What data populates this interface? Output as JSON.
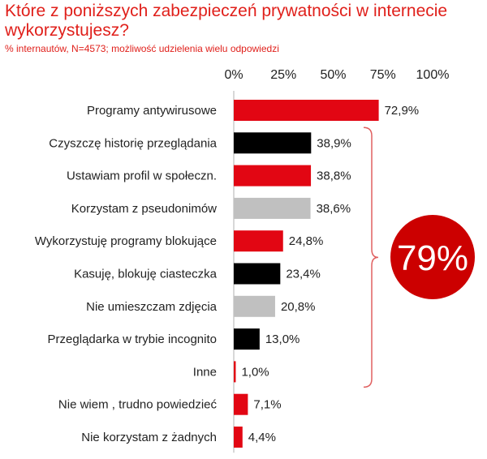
{
  "chart_data": {
    "type": "bar",
    "orientation": "horizontal",
    "title": "Które z poniższych zabezpieczeń prywatności w internecie wykorzystujesz?",
    "subtitle": "% internautów, N=4573; możliwość udzielenia wielu odpowiedzi",
    "xlim": [
      0,
      100
    ],
    "tick_labels": [
      "0%",
      "25%",
      "50%",
      "75%",
      "100%"
    ],
    "categories": [
      "Programy antywirusowe",
      "Czyszczę historię przeglądania",
      "Ustawiam profil w społeczn.",
      "Korzystam z pseudonimów",
      "Wykorzystuję programy blokujące",
      "Kasuję, blokuję ciasteczka",
      "Nie umieszczam zdjęcia",
      "Przeglądarka w trybie incognito",
      "Inne",
      "Nie wiem , trudno powiedzieć",
      "Nie korzystam z żadnych"
    ],
    "values": [
      72.9,
      38.9,
      38.8,
      38.6,
      24.8,
      23.4,
      20.8,
      13.0,
      1.0,
      7.1,
      4.4
    ],
    "value_labels": [
      "72,9%",
      "38,9%",
      "38,8%",
      "38,6%",
      "24,8%",
      "23,4%",
      "20,8%",
      "13,0%",
      "1,0%",
      "7,1%",
      "4,4%"
    ],
    "bar_colors": [
      "#e20613",
      "#000000",
      "#e20613",
      "#c0c0c0",
      "#e20613",
      "#000000",
      "#c0c0c0",
      "#000000",
      "#e20613",
      "#e20613",
      "#e20613"
    ],
    "annotation": {
      "text": "79%",
      "brace_from_category": 1,
      "brace_to_category": 8,
      "circle_color": "#cc0000",
      "brace_color": "#e06060"
    }
  },
  "colors": {
    "title": "#e0201b",
    "text": "#222222"
  }
}
